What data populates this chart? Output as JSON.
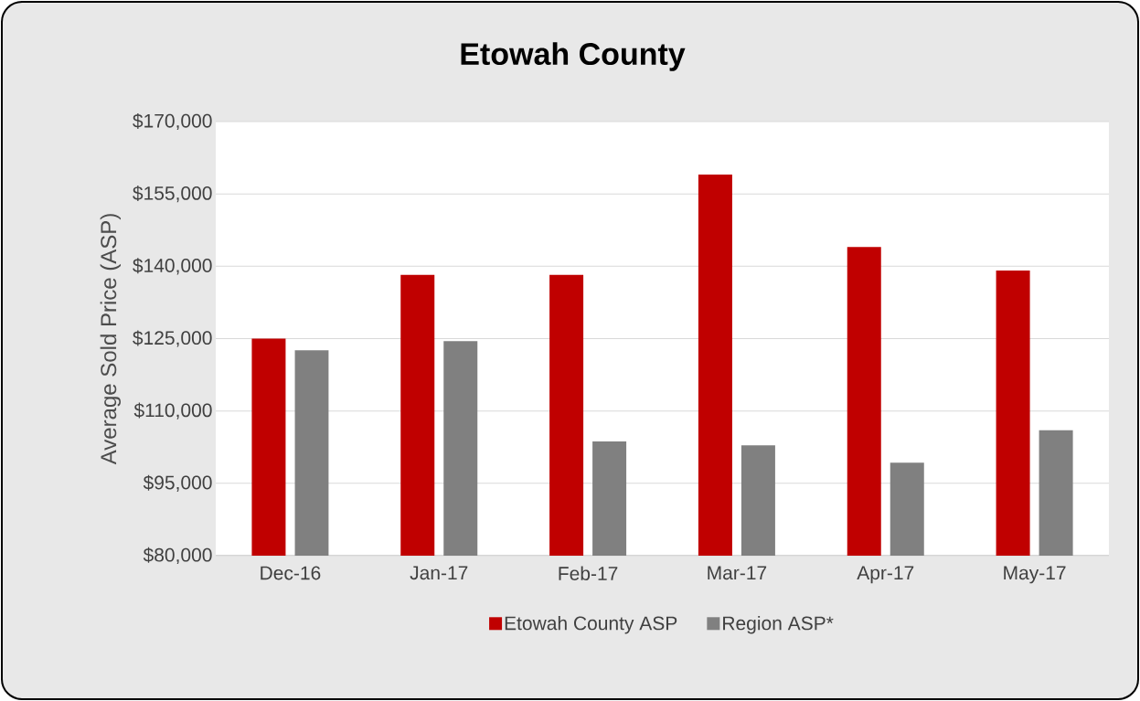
{
  "chart_data": {
    "type": "bar",
    "title": "Etowah County",
    "ylabel": "Average Sold Price (ASP)",
    "categories": [
      "Dec-16",
      "Jan-17",
      "Feb-17",
      "Mar-17",
      "Apr-17",
      "May-17"
    ],
    "series": [
      {
        "name": "Etowah County ASP",
        "color": "#c00000",
        "values": [
          125000,
          138200,
          138200,
          159000,
          144000,
          139100
        ]
      },
      {
        "name": "Region ASP*",
        "color": "#808080",
        "values": [
          122600,
          124500,
          103700,
          102900,
          99300,
          106000
        ]
      }
    ],
    "ylim": [
      80000,
      170000
    ],
    "yticks": [
      {
        "value": 80000,
        "label": "$80,000"
      },
      {
        "value": 95000,
        "label": "$95,000"
      },
      {
        "value": 110000,
        "label": "$110,000"
      },
      {
        "value": 125000,
        "label": "$125,000"
      },
      {
        "value": 140000,
        "label": "$140,000"
      },
      {
        "value": 155000,
        "label": "$155,000"
      },
      {
        "value": 170000,
        "label": "$170,000"
      }
    ],
    "grid": "y",
    "legend": "bottom"
  }
}
